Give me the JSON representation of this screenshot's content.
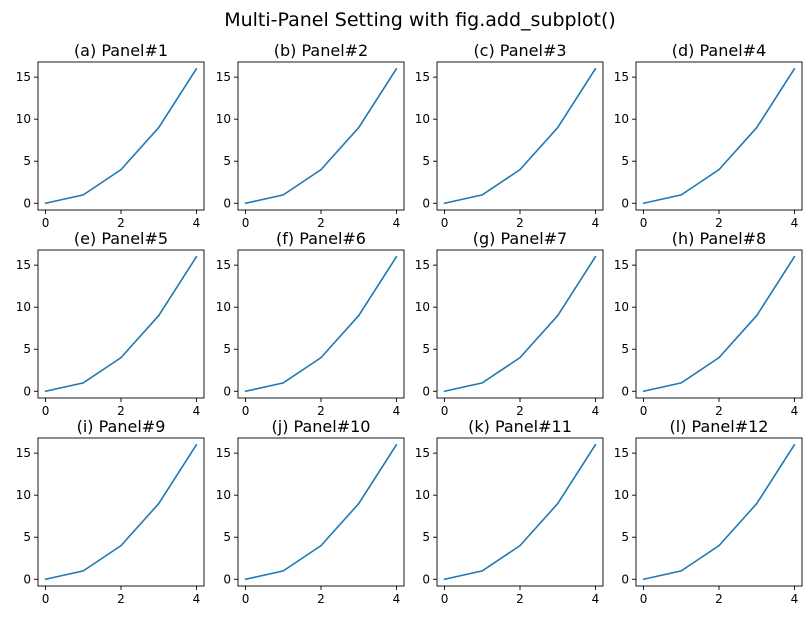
{
  "figure": {
    "suptitle": "Multi-Panel Setting with fig.add_subplot()"
  },
  "style": {
    "line_color": "#1f77b4",
    "axes_color": "#000000",
    "background": "#ffffff"
  },
  "chart_data": [
    {
      "type": "line",
      "title": "(a) Panel#1",
      "x": [
        0,
        1,
        2,
        3,
        4
      ],
      "y": [
        0,
        1,
        4,
        9,
        16
      ],
      "xticks": [
        "0",
        "2",
        "4"
      ],
      "yticks": [
        "0",
        "5",
        "10",
        "15"
      ],
      "xlim": [
        -0.2,
        4.2
      ],
      "ylim": [
        -0.8,
        16.8
      ],
      "grid": false
    },
    {
      "type": "line",
      "title": "(b) Panel#2",
      "x": [
        0,
        1,
        2,
        3,
        4
      ],
      "y": [
        0,
        1,
        4,
        9,
        16
      ],
      "xticks": [
        "0",
        "2",
        "4"
      ],
      "yticks": [
        "0",
        "5",
        "10",
        "15"
      ],
      "xlim": [
        -0.2,
        4.2
      ],
      "ylim": [
        -0.8,
        16.8
      ],
      "grid": false
    },
    {
      "type": "line",
      "title": "(c) Panel#3",
      "x": [
        0,
        1,
        2,
        3,
        4
      ],
      "y": [
        0,
        1,
        4,
        9,
        16
      ],
      "xticks": [
        "0",
        "2",
        "4"
      ],
      "yticks": [
        "0",
        "5",
        "10",
        "15"
      ],
      "xlim": [
        -0.2,
        4.2
      ],
      "ylim": [
        -0.8,
        16.8
      ],
      "grid": false
    },
    {
      "type": "line",
      "title": "(d) Panel#4",
      "x": [
        0,
        1,
        2,
        3,
        4
      ],
      "y": [
        0,
        1,
        4,
        9,
        16
      ],
      "xticks": [
        "0",
        "2",
        "4"
      ],
      "yticks": [
        "0",
        "5",
        "10",
        "15"
      ],
      "xlim": [
        -0.2,
        4.2
      ],
      "ylim": [
        -0.8,
        16.8
      ],
      "grid": false
    },
    {
      "type": "line",
      "title": "(e) Panel#5",
      "x": [
        0,
        1,
        2,
        3,
        4
      ],
      "y": [
        0,
        1,
        4,
        9,
        16
      ],
      "xticks": [
        "0",
        "2",
        "4"
      ],
      "yticks": [
        "0",
        "5",
        "10",
        "15"
      ],
      "xlim": [
        -0.2,
        4.2
      ],
      "ylim": [
        -0.8,
        16.8
      ],
      "grid": false
    },
    {
      "type": "line",
      "title": "(f) Panel#6",
      "x": [
        0,
        1,
        2,
        3,
        4
      ],
      "y": [
        0,
        1,
        4,
        9,
        16
      ],
      "xticks": [
        "0",
        "2",
        "4"
      ],
      "yticks": [
        "0",
        "5",
        "10",
        "15"
      ],
      "xlim": [
        -0.2,
        4.2
      ],
      "ylim": [
        -0.8,
        16.8
      ],
      "grid": false
    },
    {
      "type": "line",
      "title": "(g) Panel#7",
      "x": [
        0,
        1,
        2,
        3,
        4
      ],
      "y": [
        0,
        1,
        4,
        9,
        16
      ],
      "xticks": [
        "0",
        "2",
        "4"
      ],
      "yticks": [
        "0",
        "5",
        "10",
        "15"
      ],
      "xlim": [
        -0.2,
        4.2
      ],
      "ylim": [
        -0.8,
        16.8
      ],
      "grid": false
    },
    {
      "type": "line",
      "title": "(h) Panel#8",
      "x": [
        0,
        1,
        2,
        3,
        4
      ],
      "y": [
        0,
        1,
        4,
        9,
        16
      ],
      "xticks": [
        "0",
        "2",
        "4"
      ],
      "yticks": [
        "0",
        "5",
        "10",
        "15"
      ],
      "xlim": [
        -0.2,
        4.2
      ],
      "ylim": [
        -0.8,
        16.8
      ],
      "grid": false
    },
    {
      "type": "line",
      "title": "(i) Panel#9",
      "x": [
        0,
        1,
        2,
        3,
        4
      ],
      "y": [
        0,
        1,
        4,
        9,
        16
      ],
      "xticks": [
        "0",
        "2",
        "4"
      ],
      "yticks": [
        "0",
        "5",
        "10",
        "15"
      ],
      "xlim": [
        -0.2,
        4.2
      ],
      "ylim": [
        -0.8,
        16.8
      ],
      "grid": false
    },
    {
      "type": "line",
      "title": "(j) Panel#10",
      "x": [
        0,
        1,
        2,
        3,
        4
      ],
      "y": [
        0,
        1,
        4,
        9,
        16
      ],
      "xticks": [
        "0",
        "2",
        "4"
      ],
      "yticks": [
        "0",
        "5",
        "10",
        "15"
      ],
      "xlim": [
        -0.2,
        4.2
      ],
      "ylim": [
        -0.8,
        16.8
      ],
      "grid": false
    },
    {
      "type": "line",
      "title": "(k) Panel#11",
      "x": [
        0,
        1,
        2,
        3,
        4
      ],
      "y": [
        0,
        1,
        4,
        9,
        16
      ],
      "xticks": [
        "0",
        "2",
        "4"
      ],
      "yticks": [
        "0",
        "5",
        "10",
        "15"
      ],
      "xlim": [
        -0.2,
        4.2
      ],
      "ylim": [
        -0.8,
        16.8
      ],
      "grid": false
    },
    {
      "type": "line",
      "title": "(l) Panel#12",
      "x": [
        0,
        1,
        2,
        3,
        4
      ],
      "y": [
        0,
        1,
        4,
        9,
        16
      ],
      "xticks": [
        "0",
        "2",
        "4"
      ],
      "yticks": [
        "0",
        "5",
        "10",
        "15"
      ],
      "xlim": [
        -0.2,
        4.2
      ],
      "ylim": [
        -0.8,
        16.8
      ],
      "grid": false
    }
  ]
}
